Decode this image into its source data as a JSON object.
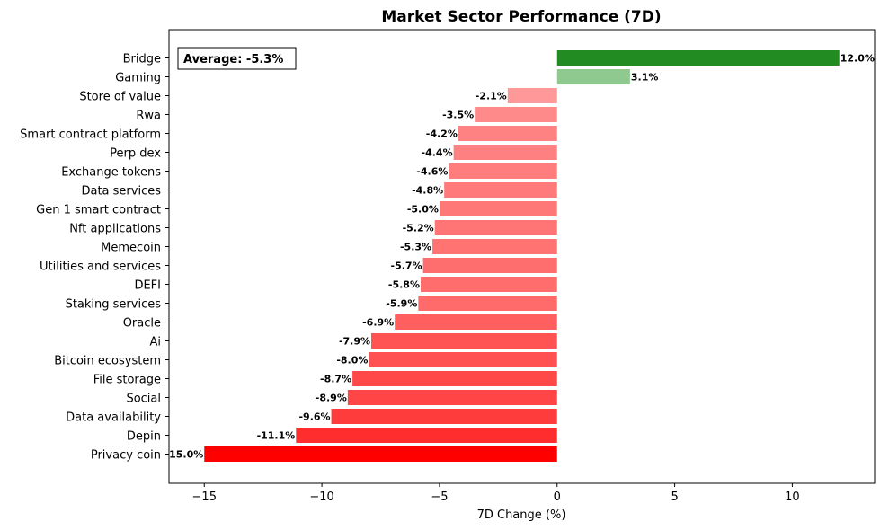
{
  "chart_data": {
    "type": "bar",
    "orientation": "horizontal",
    "title": "Market Sector Performance (7D)",
    "xlabel": "7D Change (%)",
    "ylabel": "",
    "xlim": [
      -16.5,
      13.5
    ],
    "xticks": [
      -15,
      -10,
      -5,
      0,
      5,
      10
    ],
    "xtick_labels": [
      "−15",
      "−10",
      "−5",
      "0",
      "5",
      "10"
    ],
    "annotation": "Average: -5.3%",
    "categories": [
      "Bridge",
      "Gaming",
      "Store of value",
      "Rwa",
      "Smart contract platform",
      "Perp dex",
      "Exchange tokens",
      "Data services",
      "Gen 1 smart contract",
      "Nft applications",
      "Memecoin",
      "Utilities and services",
      "DEFI",
      "Staking services",
      "Oracle",
      "Ai",
      "Bitcoin ecosystem",
      "File storage",
      "Social",
      "Data availability",
      "Depin",
      "Privacy coin"
    ],
    "values": [
      12.0,
      3.1,
      -2.1,
      -3.5,
      -4.2,
      -4.4,
      -4.6,
      -4.8,
      -5.0,
      -5.2,
      -5.3,
      -5.7,
      -5.8,
      -5.9,
      -6.9,
      -7.9,
      -8.0,
      -8.7,
      -8.9,
      -9.6,
      -11.1,
      -15.0
    ],
    "value_labels": [
      "12.0%",
      "3.1%",
      "-2.1%",
      "-3.5%",
      "-4.2%",
      "-4.4%",
      "-4.6%",
      "-4.8%",
      "-5.0%",
      "-5.2%",
      "-5.3%",
      "-5.7%",
      "-5.8%",
      "-5.9%",
      "-6.9%",
      "-7.9%",
      "-8.0%",
      "-8.7%",
      "-8.9%",
      "-9.6%",
      "-11.1%",
      "-15.0%"
    ],
    "colors": [
      "#228b22",
      "#90c990",
      "#ff9999",
      "#ff8a8a",
      "#ff8282",
      "#ff8080",
      "#ff7d7d",
      "#ff7a7a",
      "#ff7878",
      "#ff7575",
      "#ff7373",
      "#ff6e6e",
      "#ff6d6d",
      "#ff6b6b",
      "#ff5f5f",
      "#ff5252",
      "#ff5151",
      "#ff4848",
      "#ff4545",
      "#ff3c3c",
      "#ff2d2d",
      "#ff0000"
    ],
    "grid": false,
    "legend": "none"
  }
}
